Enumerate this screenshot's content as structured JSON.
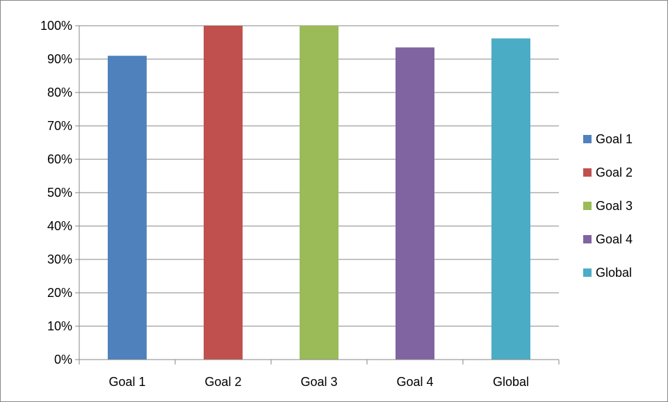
{
  "chart_data": {
    "type": "bar",
    "categories": [
      "Goal 1",
      "Goal 2",
      "Goal 3",
      "Goal 4",
      "Global"
    ],
    "values": [
      0.91,
      1.0,
      1.0,
      0.935,
      0.962
    ],
    "colors": [
      "#4F81BD",
      "#C0504D",
      "#9BBB59",
      "#8064A2",
      "#4BACC6"
    ],
    "ylim": [
      0,
      1
    ],
    "yticks": [
      "0%",
      "10%",
      "20%",
      "30%",
      "40%",
      "50%",
      "60%",
      "70%",
      "80%",
      "90%",
      "100%"
    ],
    "grid": true,
    "legend_position": "right",
    "legend": [
      "Goal 1",
      "Goal 2",
      "Goal 3",
      "Goal 4",
      "Global"
    ],
    "title": "",
    "xlabel": "",
    "ylabel": ""
  }
}
